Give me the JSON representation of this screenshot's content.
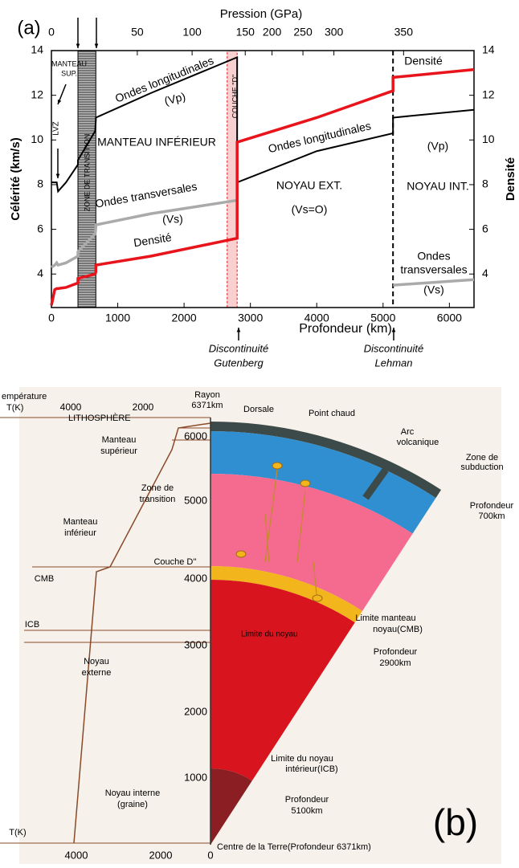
{
  "chart_data": {
    "type": "line",
    "panel_label": "(a)",
    "x_label": "Profondeur (km)",
    "x2_label": "Pression (GPa)",
    "y_label": "Célérité (km/s)",
    "y2_label": "Densité",
    "x": [
      0,
      50,
      80,
      100,
      220,
      400,
      400,
      660,
      670,
      670,
      1500,
      2800,
      2800,
      4000,
      5150,
      5150,
      6371
    ],
    "series": [
      {
        "name": "Vp",
        "color": "#000000",
        "values": [
          8.1,
          8.1,
          8.1,
          7.7,
          8.1,
          8.9,
          9.1,
          10.4,
          10.9,
          11.0,
          12.1,
          13.7,
          8.1,
          9.5,
          10.3,
          11.0,
          11.35
        ]
      },
      {
        "name": "Vs",
        "color": "#aaaaaa",
        "values": [
          4.3,
          4.4,
          4.5,
          4.4,
          4.5,
          4.8,
          5.0,
          5.8,
          6.1,
          6.2,
          6.7,
          7.3,
          null,
          null,
          null,
          3.5,
          3.75
        ]
      },
      {
        "name": "Densité",
        "color": "#e8141b",
        "axis": "y2",
        "values": [
          2.6,
          3.3,
          3.35,
          3.35,
          3.4,
          3.6,
          3.8,
          4.0,
          4.1,
          4.4,
          4.8,
          5.6,
          9.9,
          11.0,
          12.2,
          12.8,
          13.15
        ]
      }
    ],
    "xlim": [
      0,
      6371
    ],
    "xticks": [
      0,
      1000,
      2000,
      3000,
      4000,
      5000,
      6000
    ],
    "x2ticks": [
      {
        "value": 0,
        "label": "0"
      },
      {
        "value": 1295,
        "label": "50"
      },
      {
        "value": 2121,
        "label": "100"
      },
      {
        "value": 2922,
        "label": "150"
      },
      {
        "value": 3326,
        "label": "200"
      },
      {
        "value": 3792,
        "label": "250"
      },
      {
        "value": 4259,
        "label": "300"
      },
      {
        "value": 5309,
        "label": "350"
      }
    ],
    "ylim": [
      2.5,
      14
    ],
    "yticks": [
      4,
      6,
      8,
      10,
      12,
      14
    ],
    "y2lim": [
      2.5,
      14
    ],
    "y2ticks": [
      4,
      6,
      8,
      10,
      12,
      14
    ],
    "zones": [
      {
        "from": 400,
        "to": 670
      },
      {
        "from": 2650,
        "to": 2800
      }
    ],
    "boundary": 5150,
    "annotations": [
      "MANTEAU",
      "SUP.",
      "LVZ",
      "ZONE DE TRANSITION",
      "COUCHE \"D\"",
      "Ondes longitudinales",
      "(Vp)",
      "MANTEAU INFÉRIEUR",
      "Ondes transversales",
      "(Vs)",
      "Densité",
      "NOYAU EXT.",
      "(Vs=O)",
      "Ondes longitudinales",
      "(Vp)",
      "NOYAU INT.",
      "Densité",
      "Ondes",
      "transversales",
      "(Vs)",
      "Discontinuité",
      "Gutenberg",
      "Discontinuité",
      "Lehman"
    ]
  },
  "diagram": {
    "panel_label": "(b)",
    "radius_ticks": [
      "6000",
      "5000",
      "4000",
      "3000",
      "2000",
      "1000"
    ],
    "labels": [
      "empérature",
      "T(K)",
      "4000",
      "2000",
      "Rayon",
      "6371km",
      "Dorsale",
      "Point chaud",
      "Arc",
      "volcanique",
      "Zone de",
      "subduction",
      "Profondeur",
      "700km",
      "Limite manteau",
      "noyau(CMB)",
      "Profondeur",
      "2900km",
      "Limite du noyau",
      "intérieur(ICB)",
      "Profondeur",
      "5100km",
      "Centre de la Terre(Profondeur 6371km)",
      "LITHOSPHÈRE",
      "Manteau",
      "supérieur",
      "Zone de",
      "transition",
      "Manteau",
      "inférieur",
      "CMB",
      "Couche D''",
      "Noyau",
      "externe",
      "ICB",
      "Limite du noyau",
      "Noyau interne",
      "(graine)",
      "T(K)",
      "4000",
      "2000",
      "0"
    ]
  }
}
